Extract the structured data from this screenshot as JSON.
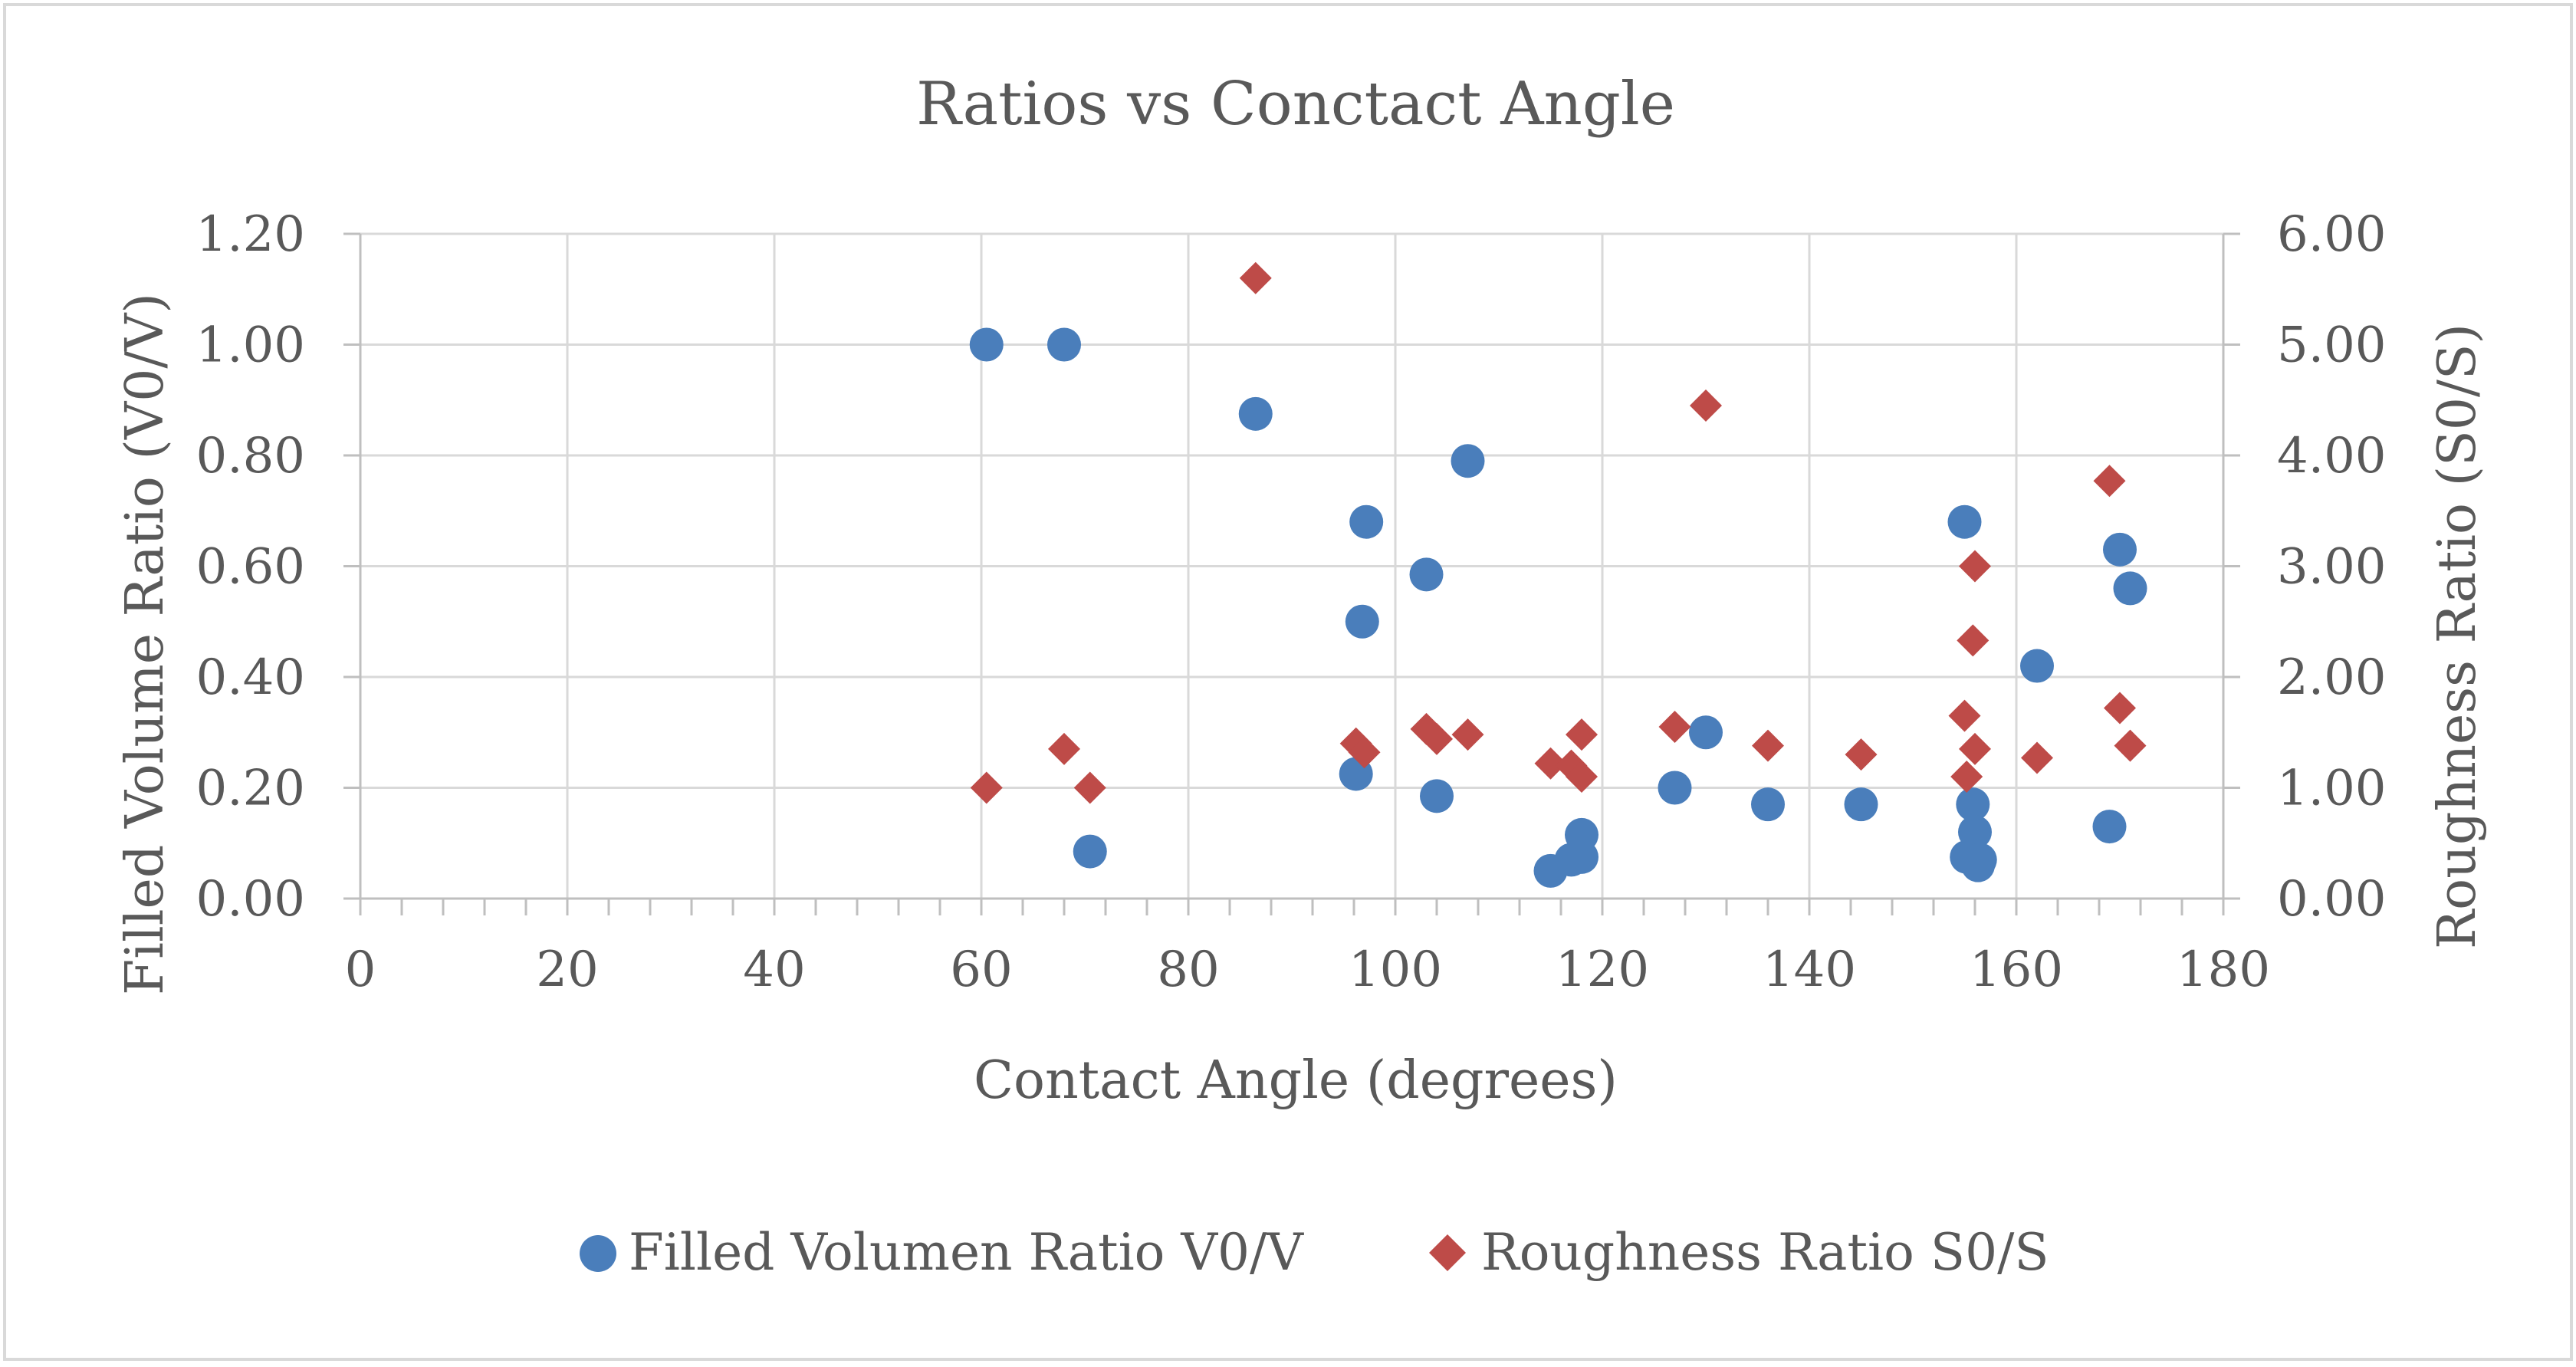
{
  "chart_data": {
    "type": "scatter",
    "title": "Ratios vs Conctact Angle",
    "xlabel": "Contact Angle (degrees)",
    "ylabel": "Filled Volume Ratio (V0/V)",
    "y2label": "Roughness Ratio (S0/S)",
    "xlim": [
      0,
      180
    ],
    "ylim": [
      0,
      1.2
    ],
    "y2lim": [
      0,
      6
    ],
    "xticks": [
      "0",
      "20",
      "40",
      "60",
      "80",
      "100",
      "120",
      "140",
      "160",
      "180"
    ],
    "yticks": [
      "0.00",
      "0.20",
      "0.40",
      "0.60",
      "0.80",
      "1.00",
      "1.20"
    ],
    "y2ticks": [
      "0.00",
      "1.00",
      "2.00",
      "3.00",
      "4.00",
      "5.00",
      "6.00"
    ],
    "grid": true,
    "legend_position": "bottom",
    "series": [
      {
        "name": "Filled Volumen Ratio V0/V",
        "axis": "left",
        "marker": "circle",
        "color": "#4a7ebb",
        "points": [
          [
            60.5,
            1.0
          ],
          [
            68.0,
            1.0
          ],
          [
            70.5,
            0.085
          ],
          [
            86.5,
            0.875
          ],
          [
            96.2,
            0.225
          ],
          [
            96.8,
            0.5
          ],
          [
            97.2,
            0.68
          ],
          [
            103.0,
            0.585
          ],
          [
            104.0,
            0.185
          ],
          [
            107.0,
            0.79
          ],
          [
            115.0,
            0.05
          ],
          [
            117.0,
            0.07
          ],
          [
            118.0,
            0.075
          ],
          [
            118.0,
            0.115
          ],
          [
            127.0,
            0.2
          ],
          [
            130.0,
            0.3
          ],
          [
            136.0,
            0.17
          ],
          [
            145.0,
            0.17
          ],
          [
            155.0,
            0.68
          ],
          [
            155.2,
            0.075
          ],
          [
            155.8,
            0.17
          ],
          [
            156.0,
            0.12
          ],
          [
            156.3,
            0.06
          ],
          [
            156.5,
            0.07
          ],
          [
            162.0,
            0.42
          ],
          [
            169.0,
            0.13
          ],
          [
            170.0,
            0.63
          ],
          [
            171.0,
            0.56
          ]
        ]
      },
      {
        "name": "Roughness Ratio S0/S",
        "axis": "right",
        "marker": "diamond",
        "color": "#be4b48",
        "points": [
          [
            60.5,
            1.0
          ],
          [
            68.0,
            1.35
          ],
          [
            70.5,
            1.0
          ],
          [
            86.5,
            5.6
          ],
          [
            96.2,
            1.4
          ],
          [
            97.0,
            1.32
          ],
          [
            103.0,
            1.53
          ],
          [
            104.0,
            1.44
          ],
          [
            107.0,
            1.48
          ],
          [
            115.0,
            1.22
          ],
          [
            117.0,
            1.2
          ],
          [
            118.0,
            1.48
          ],
          [
            118.0,
            1.1
          ],
          [
            127.0,
            1.55
          ],
          [
            130.0,
            4.45
          ],
          [
            136.0,
            1.38
          ],
          [
            145.0,
            1.3
          ],
          [
            155.0,
            1.65
          ],
          [
            155.2,
            1.1
          ],
          [
            155.8,
            2.33
          ],
          [
            156.0,
            3.0
          ],
          [
            156.0,
            1.35
          ],
          [
            162.0,
            1.27
          ],
          [
            169.0,
            3.77
          ],
          [
            170.0,
            1.72
          ],
          [
            171.0,
            1.38
          ]
        ]
      }
    ]
  }
}
